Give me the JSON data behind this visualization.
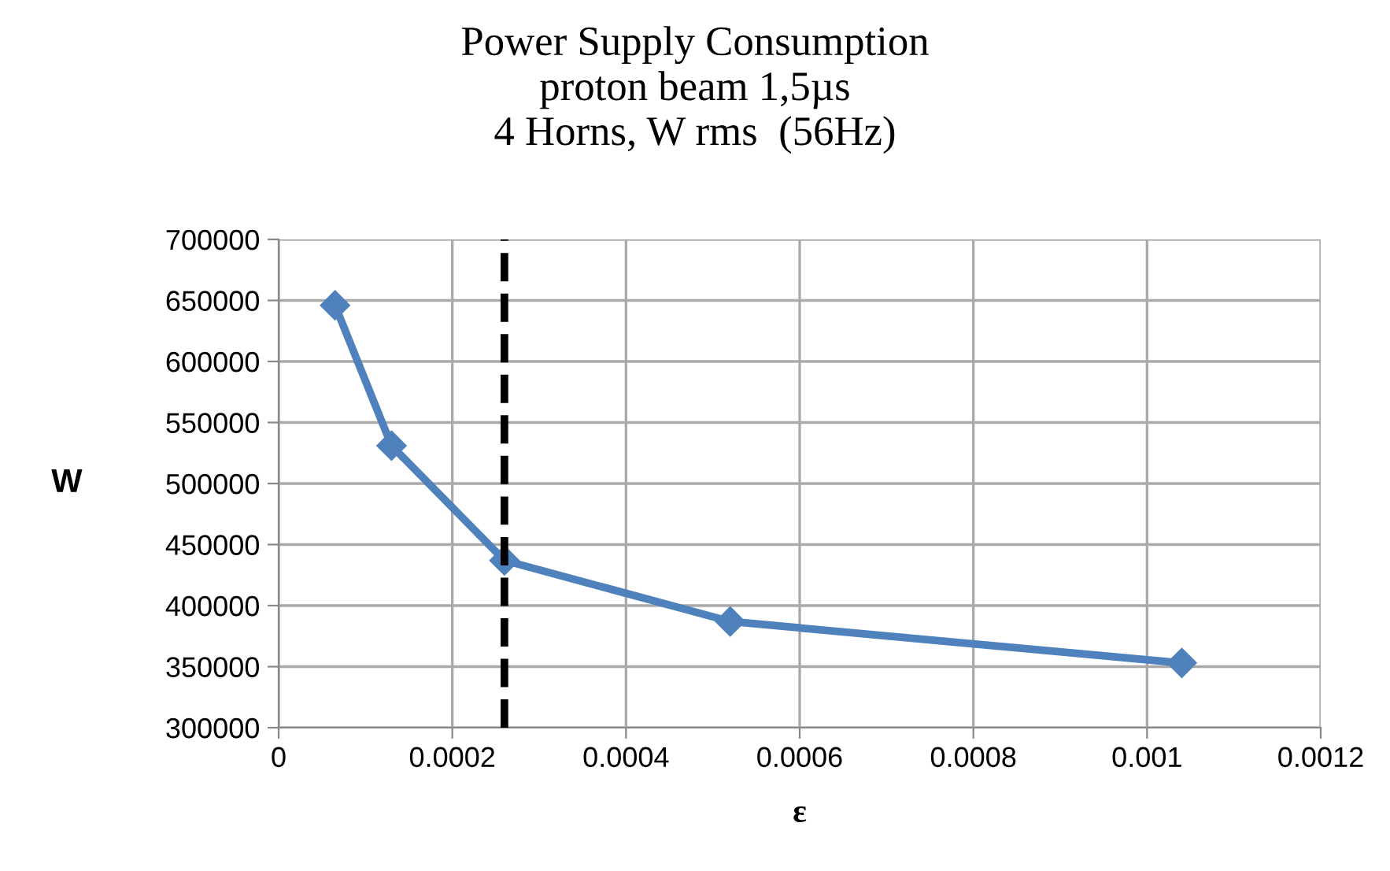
{
  "chart_data": {
    "type": "line",
    "title": "Power Supply Consumption\nproton beam 1,5µs\n4 Horns, W rms  (56Hz)",
    "xlabel": "ε",
    "ylabel": "W",
    "x": [
      6.5e-05,
      0.00013,
      0.00026,
      0.00052,
      0.00104
    ],
    "series": [
      {
        "color": "#4f81bd",
        "values": [
          646000,
          531000,
          437000,
          387000,
          353000
        ]
      }
    ],
    "xlim": [
      0,
      0.0012
    ],
    "xticks": [
      0,
      0.0002,
      0.0004,
      0.0006,
      0.0008,
      0.001,
      0.0012
    ],
    "ylim": [
      300000,
      700000
    ],
    "yticks": [
      300000,
      350000,
      400000,
      450000,
      500000,
      550000,
      600000,
      650000,
      700000
    ],
    "ref_lines": [
      {
        "axis": "x",
        "value": 0.00026,
        "color": "#000000",
        "line_style": "dashed"
      }
    ],
    "grid": true,
    "legend": false,
    "marker": "diamond",
    "line_style": "solid"
  }
}
